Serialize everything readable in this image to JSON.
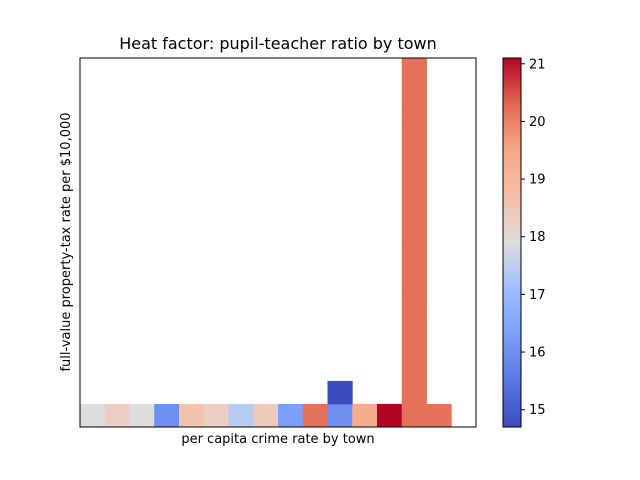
{
  "chart_data": {
    "type": "heatmap",
    "title": "Heat factor: pupil-teacher ratio by town",
    "xlabel": "per capita crime rate by town",
    "ylabel": "full-value property-tax rate per $10,000",
    "colorbar": {
      "colormap": "coolwarm",
      "vmin": 14.7,
      "vmax": 21.1,
      "ticks": [
        15,
        16,
        17,
        18,
        19,
        20,
        21
      ]
    },
    "grid_columns": 16,
    "grid_rows": 16,
    "cells": [
      {
        "col": 0,
        "row": 0,
        "value": 17.9
      },
      {
        "col": 1,
        "row": 0,
        "value": 18.3
      },
      {
        "col": 2,
        "row": 0,
        "value": 17.9
      },
      {
        "col": 3,
        "row": 0,
        "value": 16.0
      },
      {
        "col": 4,
        "row": 0,
        "value": 18.6
      },
      {
        "col": 5,
        "row": 0,
        "value": 18.3
      },
      {
        "col": 6,
        "row": 0,
        "value": 17.4
      },
      {
        "col": 7,
        "row": 0,
        "value": 18.4
      },
      {
        "col": 8,
        "row": 0,
        "value": 16.3
      },
      {
        "col": 9,
        "row": 0,
        "value": 20.2
      },
      {
        "col": 10,
        "row": 0,
        "value": 16.0
      },
      {
        "col": 11,
        "row": 0,
        "value": 19.4
      },
      {
        "col": 12,
        "row": 0,
        "value": 21.1
      },
      {
        "col": 13,
        "row": 0,
        "value": 20.2
      },
      {
        "col": 14,
        "row": 0,
        "value": 20.2
      },
      {
        "col": 10,
        "row": 1,
        "value": 14.7
      },
      {
        "col": 13,
        "row": 1,
        "value": 20.2
      },
      {
        "col": 13,
        "row": 2,
        "value": 20.2
      },
      {
        "col": 13,
        "row": 3,
        "value": 20.2
      },
      {
        "col": 13,
        "row": 4,
        "value": 20.2
      },
      {
        "col": 13,
        "row": 5,
        "value": 20.2
      },
      {
        "col": 13,
        "row": 6,
        "value": 20.2
      },
      {
        "col": 13,
        "row": 7,
        "value": 20.2
      },
      {
        "col": 13,
        "row": 8,
        "value": 20.2
      },
      {
        "col": 13,
        "row": 9,
        "value": 20.2
      },
      {
        "col": 13,
        "row": 10,
        "value": 20.2
      },
      {
        "col": 13,
        "row": 11,
        "value": 20.2
      },
      {
        "col": 13,
        "row": 12,
        "value": 20.2
      },
      {
        "col": 13,
        "row": 13,
        "value": 20.2
      },
      {
        "col": 13,
        "row": 14,
        "value": 20.2
      },
      {
        "col": 13,
        "row": 15,
        "value": 20.2
      }
    ]
  }
}
